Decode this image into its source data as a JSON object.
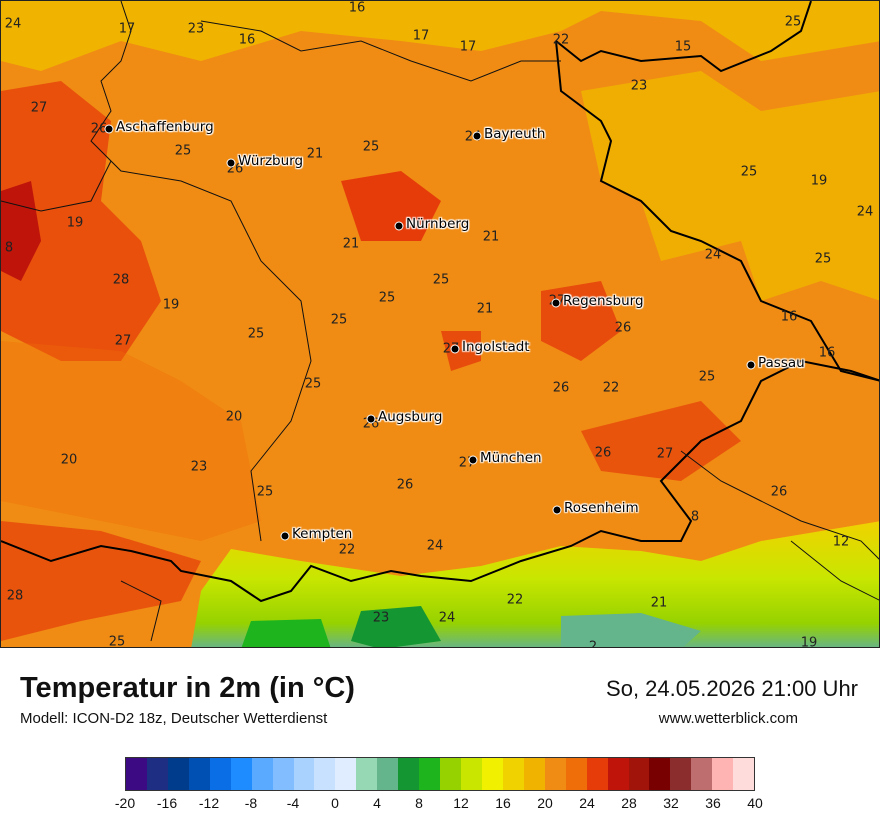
{
  "title": "Temperatur in 2m (in °C)",
  "model": "Modell: ICON-D2 18z, Deutscher Wetterdienst",
  "datetime": "So, 24.05.2026 21:00 Uhr",
  "website": "www.wetterblick.com",
  "legend": {
    "ticks": [
      "-20",
      "-16",
      "-12",
      "-8",
      "-4",
      "0",
      "4",
      "8",
      "12",
      "16",
      "20",
      "24",
      "28",
      "32",
      "36",
      "40"
    ],
    "colors": [
      "#3c0a82",
      "#1e2e82",
      "#003c8c",
      "#0050b4",
      "#0a6ee6",
      "#1e8cff",
      "#5aaaff",
      "#82beff",
      "#aad2ff",
      "#c8e1ff",
      "#e0ecff",
      "#96d7b4",
      "#64b48c",
      "#149632",
      "#1eb41e",
      "#96d200",
      "#c8e600",
      "#f0f000",
      "#f0d200",
      "#f0b400",
      "#f08c14",
      "#f06e0a",
      "#e63c0a",
      "#be140a",
      "#a0140a",
      "#780000",
      "#8c2d2d",
      "#be6e6e",
      "#ffb4b4",
      "#ffdcdc"
    ]
  },
  "cities": [
    {
      "name": "Aschaffenburg"
    },
    {
      "name": "Würzburg"
    },
    {
      "name": "Bayreuth"
    },
    {
      "name": "Nürnberg"
    },
    {
      "name": "Regensburg"
    },
    {
      "name": "Ingolstadt"
    },
    {
      "name": "Passau"
    },
    {
      "name": "Augsburg"
    },
    {
      "name": "München"
    },
    {
      "name": "Rosenheim"
    },
    {
      "name": "Kempten"
    }
  ],
  "values": [
    "16",
    "24",
    "17",
    "23",
    "16",
    "17",
    "17",
    "22",
    "15",
    "25",
    "23",
    "27",
    "26",
    "25",
    "26",
    "21",
    "25",
    "24",
    "25",
    "19",
    "24",
    "8",
    "19",
    "28",
    "24",
    "21",
    "21",
    "25",
    "25",
    "19",
    "25",
    "25",
    "21",
    "26",
    "27",
    "25",
    "16",
    "27",
    "16",
    "25",
    "27",
    "22",
    "25",
    "26",
    "20",
    "20",
    "23",
    "25",
    "27",
    "26",
    "26",
    "26",
    "22",
    "27",
    "24",
    "26",
    "12",
    "28",
    "8",
    "23",
    "24",
    "22",
    "21",
    "25",
    "2",
    "19"
  ]
}
